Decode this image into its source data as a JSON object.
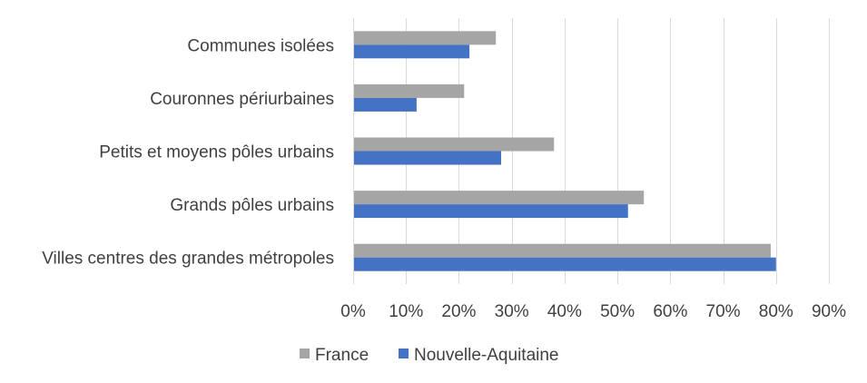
{
  "chart_data": {
    "type": "bar",
    "orientation": "horizontal",
    "categories": [
      "Communes isolées",
      "Couronnes périurbaines",
      "Petits et moyens pôles urbains",
      "Grands pôles urbains",
      "Villes centres des grandes métropoles"
    ],
    "series": [
      {
        "name": "France",
        "values": [
          27,
          21,
          38,
          55,
          79
        ],
        "color": "#a5a5a5"
      },
      {
        "name": "Nouvelle-Aquitaine",
        "values": [
          22,
          12,
          28,
          52,
          80
        ],
        "color": "#4472c4"
      }
    ],
    "xlim": [
      0,
      90
    ],
    "xticks": [
      "0%",
      "10%",
      "20%",
      "30%",
      "40%",
      "50%",
      "60%",
      "70%",
      "80%",
      "90%"
    ],
    "grid": "vertical",
    "legend": "bottom",
    "title": "",
    "xlabel": "",
    "ylabel": ""
  }
}
